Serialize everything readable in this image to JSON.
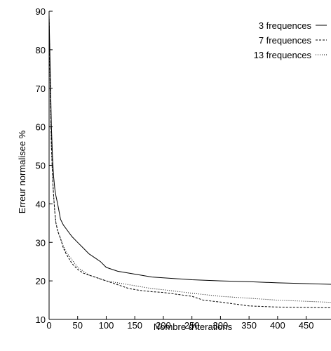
{
  "chart_data": {
    "type": "line",
    "xlabel": "Nombre d'iterations",
    "ylabel": "Erreur normalisee %",
    "xlim": [
      0,
      500
    ],
    "ylim": [
      10,
      90
    ],
    "xticks": [
      0,
      50,
      100,
      150,
      200,
      250,
      300,
      350,
      400,
      450
    ],
    "yticks": [
      10,
      20,
      30,
      40,
      50,
      60,
      70,
      80,
      90
    ],
    "grid": false,
    "legend_position": "top-right",
    "series": [
      {
        "name": "3 frequences",
        "style": "solid",
        "x": [
          0,
          2,
          4,
          6,
          8,
          10,
          12,
          15,
          20,
          25,
          30,
          40,
          50,
          60,
          70,
          80,
          90,
          100,
          120,
          140,
          160,
          180,
          200,
          250,
          300,
          350,
          400,
          450,
          500
        ],
        "y": [
          89,
          75,
          60,
          52,
          47,
          44,
          42,
          40,
          36,
          34.5,
          33.5,
          31.5,
          30,
          28.5,
          27,
          26,
          25,
          23.5,
          22.5,
          22,
          21.5,
          21,
          20.8,
          20.3,
          20,
          19.8,
          19.5,
          19.3,
          19.1
        ]
      },
      {
        "name": "7 frequences",
        "style": "dashed",
        "x": [
          0,
          2,
          4,
          6,
          8,
          10,
          12,
          15,
          20,
          25,
          30,
          40,
          50,
          60,
          70,
          80,
          90,
          100,
          120,
          140,
          160,
          180,
          200,
          250,
          270,
          300,
          350,
          400,
          450,
          500
        ],
        "y": [
          89,
          70,
          55,
          47,
          42,
          38,
          35,
          33,
          31,
          28.5,
          27,
          24.5,
          23,
          22,
          21.5,
          21,
          20.5,
          20,
          19,
          18,
          17.5,
          17.2,
          17,
          16,
          15,
          14.5,
          13.5,
          13.2,
          13.1,
          13
        ]
      },
      {
        "name": "13 frequences",
        "style": "dotted",
        "x": [
          0,
          2,
          4,
          6,
          8,
          10,
          12,
          15,
          20,
          25,
          30,
          40,
          50,
          60,
          70,
          80,
          90,
          100,
          120,
          140,
          160,
          180,
          200,
          250,
          300,
          350,
          400,
          450,
          500
        ],
        "y": [
          89,
          68,
          55,
          47,
          42,
          38,
          35,
          33,
          31,
          29,
          27.5,
          25.5,
          23.5,
          22.5,
          21.5,
          21,
          20.5,
          20,
          19.5,
          19,
          18.5,
          18,
          17.7,
          16.8,
          16,
          15.5,
          15,
          14.7,
          14.4
        ]
      }
    ]
  }
}
